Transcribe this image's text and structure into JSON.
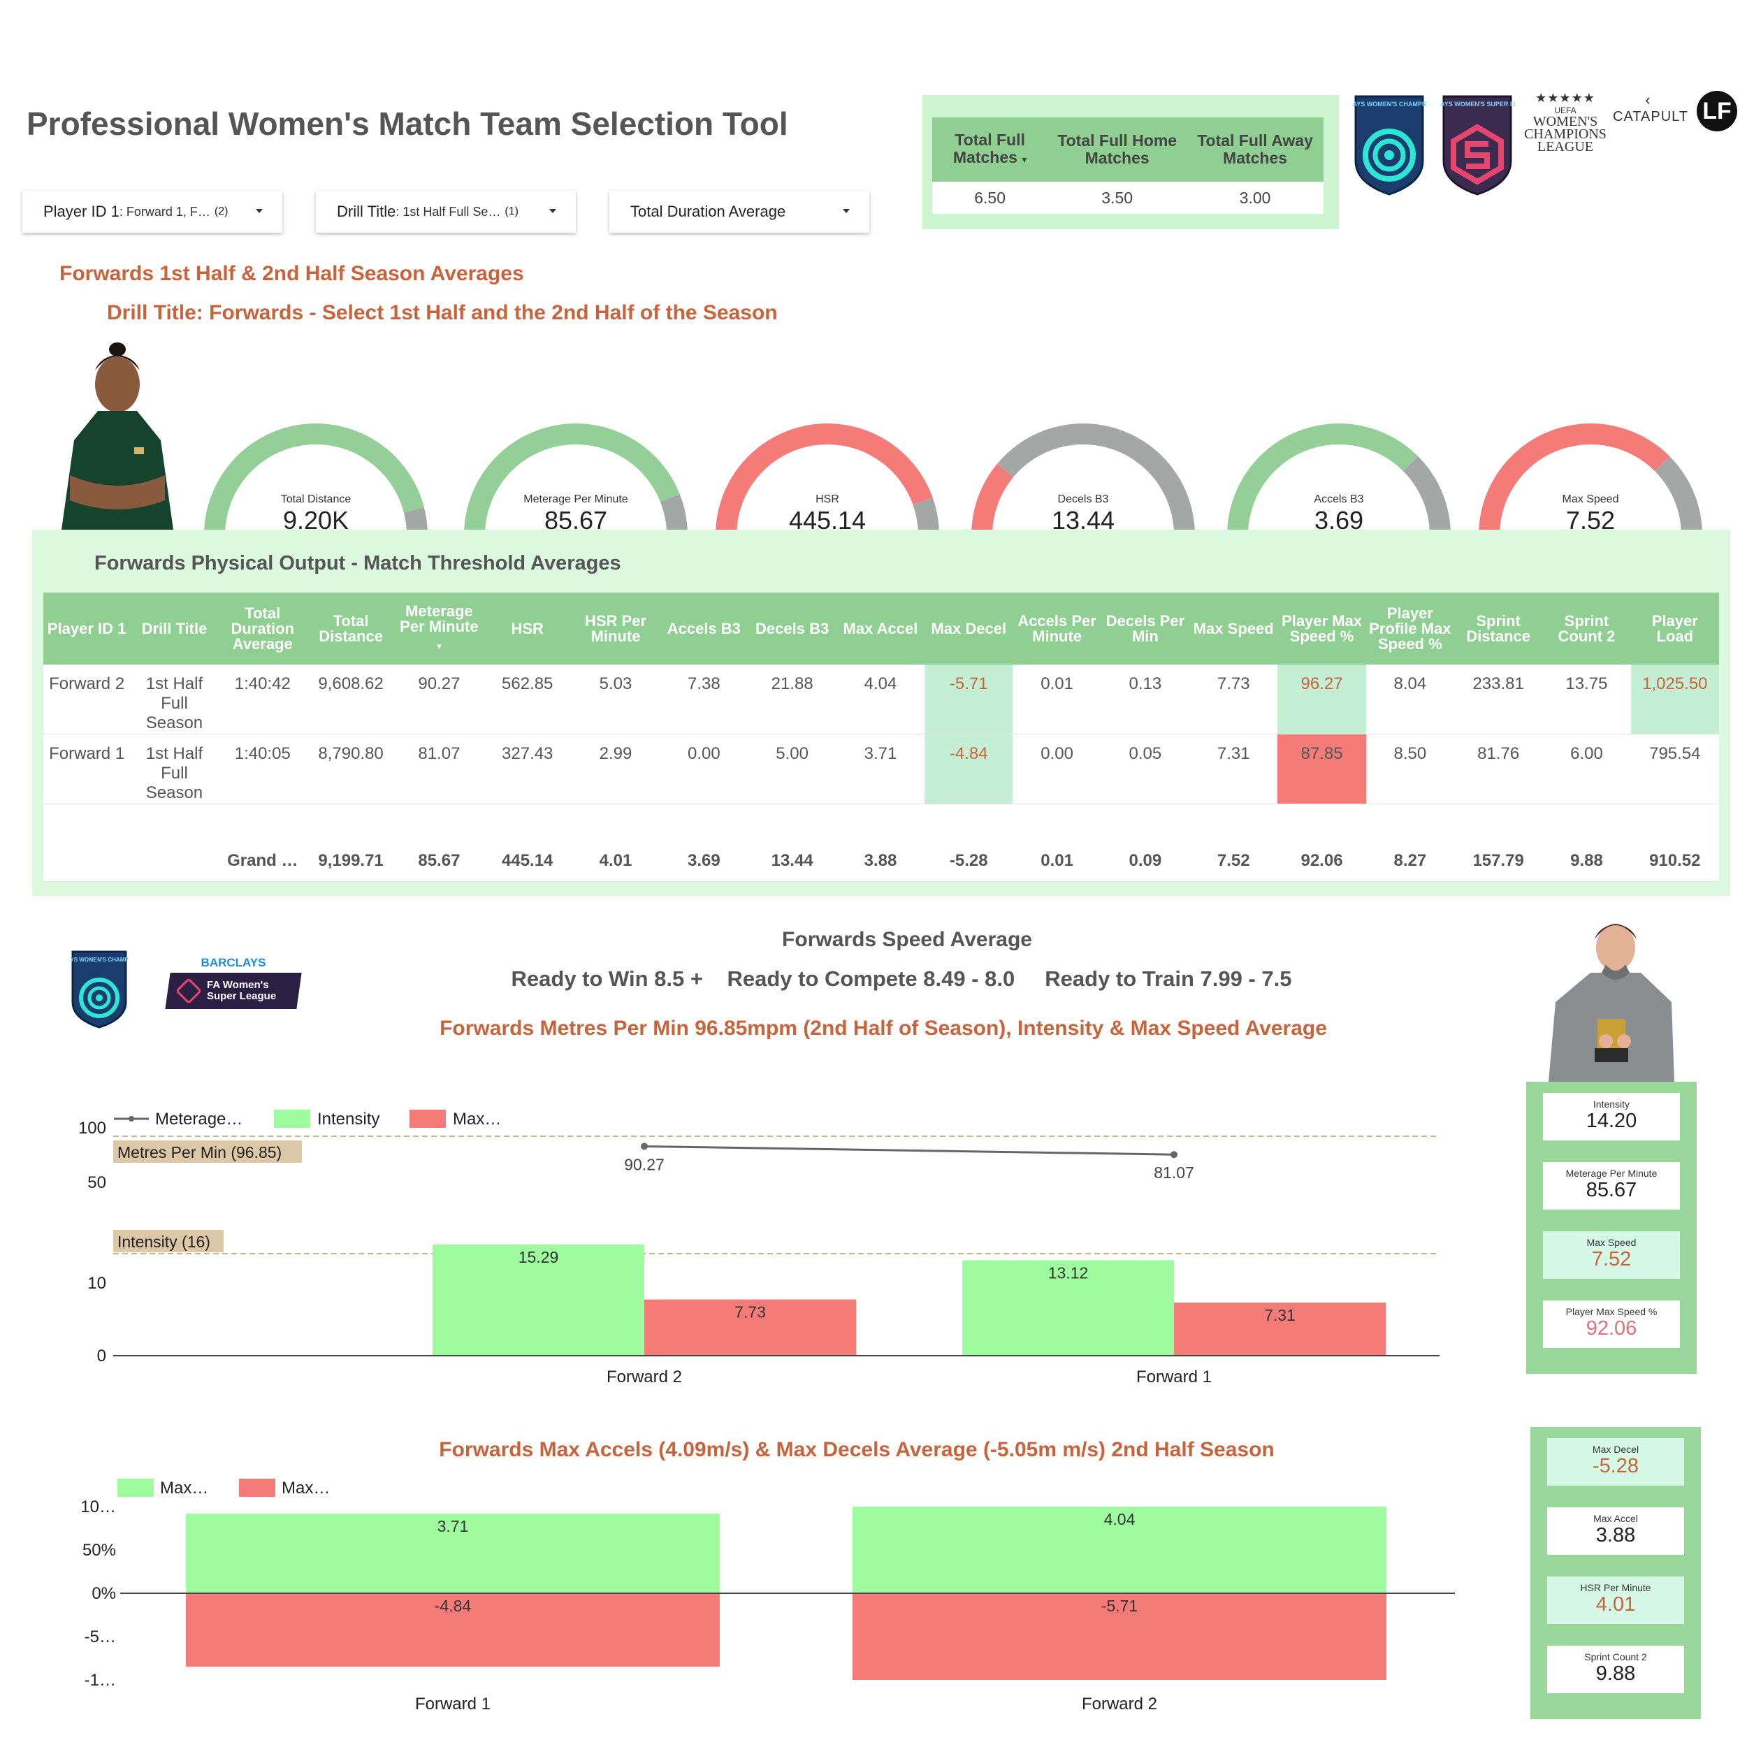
{
  "header": {
    "title": "Professional Women's Match Team Selection Tool",
    "filters": [
      {
        "label": "Player ID 1",
        "value": ": Forward 1, F…",
        "count": "(2)"
      },
      {
        "label": "Drill Title",
        "value": ": 1st Half Full Se…",
        "count": "(1)"
      },
      {
        "label": "Total Duration Average",
        "value": "",
        "count": ""
      }
    ]
  },
  "summary_table": {
    "headers": [
      "Total Full Matches",
      "Total Full Home Matches",
      "Total Full Away Matches"
    ],
    "values": [
      "6.50",
      "3.50",
      "3.00"
    ]
  },
  "logos": {
    "wc": "BARCLAYS WOMEN'S CHAMPIONSHIP",
    "wsl": "BARCLAYS WOMEN'S SUPER LEAGUE",
    "ucl": "WOMEN'S CHAMPIONS LEAGUE",
    "uefa": "UEFA",
    "catapult": "CATAPULT",
    "lf": "LF",
    "barclays": "BARCLAYS",
    "fa_wsl": "FA Women's Super League"
  },
  "section": {
    "heading": "Forwards 1st Half & 2nd Half Season Averages",
    "subheading": "Drill Title: Forwards - Select 1st Half and the 2nd Half of the Season"
  },
  "gauges": [
    {
      "label": "Total Distance",
      "value": "9.20K",
      "fill": 0.92,
      "color": "#93cf97"
    },
    {
      "label": "Meterage Per Minute",
      "value": "85.67",
      "fill": 0.88,
      "color": "#93cf97"
    },
    {
      "label": "HSR",
      "value": "445.14",
      "fill": 0.89,
      "color": "#f47b78"
    },
    {
      "label": "Decels B3",
      "value": "13.44",
      "fill": 0.22,
      "color": "#f47b78"
    },
    {
      "label": "Accels B3",
      "value": "3.69",
      "fill": 0.75,
      "color": "#93cf97"
    },
    {
      "label": "Max Speed",
      "value": "7.52",
      "fill": 0.75,
      "color": "#f47b78"
    }
  ],
  "output_table": {
    "title": "Forwards Physical Output - Match Threshold Averages",
    "headers": [
      "Player ID 1",
      "Drill Title",
      "Total Duration Average",
      "Total Distance",
      "Meterage Per Minute",
      "HSR",
      "HSR Per Minute",
      "Accels B3",
      "Decels B3",
      "Max Accel",
      "Max Decel",
      "Accels Per Minute",
      "Decels Per Min",
      "Max Speed",
      "Player Max Speed %",
      "Player Profile Max Speed %",
      "Sprint Distance",
      "Sprint Count 2",
      "Player Load"
    ],
    "rows": [
      [
        "Forward 2",
        "1st Half Full Season",
        "1:40:42",
        "9,608.62",
        "90.27",
        "562.85",
        "5.03",
        "7.38",
        "21.88",
        "4.04",
        "-5.71",
        "0.01",
        "0.13",
        "7.73",
        "96.27",
        "8.04",
        "233.81",
        "13.75",
        "1,025.50"
      ],
      [
        "Forward 1",
        "1st Half Full Season",
        "1:40:05",
        "8,790.80",
        "81.07",
        "327.43",
        "2.99",
        "0.00",
        "5.00",
        "3.71",
        "-4.84",
        "0.00",
        "0.05",
        "7.31",
        "87.85",
        "8.50",
        "81.76",
        "6.00",
        "795.54"
      ]
    ],
    "grand_total": [
      "",
      "",
      "Grand …",
      "9,199.71",
      "85.67",
      "445.14",
      "4.01",
      "3.69",
      "13.44",
      "3.88",
      "-5.28",
      "0.01",
      "0.09",
      "7.52",
      "92.06",
      "8.27",
      "157.79",
      "9.88",
      "910.52"
    ]
  },
  "speed_section": {
    "title": "Forwards Speed Average",
    "bands": "Ready to Win 8.5 +    Ready to Compete 8.49 - 8.0     Ready to Train 7.99 - 7.5",
    "subtitle": "Forwards Metres Per Min 96.85mpm (2nd Half of Season), Intensity & Max Speed Average"
  },
  "chart_data": [
    {
      "type": "bar",
      "categories": [
        "Forward 2",
        "Forward 1"
      ],
      "legend": [
        "Meterage…",
        "Intensity",
        "Max…"
      ],
      "line_series": {
        "name": "Meterage…",
        "values": [
          90.27,
          81.07
        ]
      },
      "series": [
        {
          "name": "Intensity",
          "values": [
            15.29,
            13.12
          ],
          "color": "#9efc9e"
        },
        {
          "name": "Max…",
          "values": [
            7.73,
            7.31
          ],
          "color": "#f47b78"
        }
      ],
      "reference_lines": [
        {
          "label": "Metres Per Min (96.85)",
          "value": 96.85
        },
        {
          "label": "Intensity (16)",
          "value": 16
        }
      ],
      "y_ticks_upper": [
        "100",
        "50"
      ],
      "y_ticks_lower": [
        "10",
        "0"
      ]
    },
    {
      "type": "bar",
      "title": "Forwards Max Accels (4.09m/s) & Max Decels Average (-5.05m m/s) 2nd Half Season",
      "categories": [
        "Forward 1",
        "Forward 2"
      ],
      "legend": [
        "Max…",
        "Max…"
      ],
      "series": [
        {
          "name": "Max…",
          "values": [
            3.71,
            4.04
          ],
          "color": "#9efc9e"
        },
        {
          "name": "Max…",
          "values": [
            -4.84,
            -5.71
          ],
          "color": "#f47b78"
        }
      ],
      "y_ticks": [
        "10…",
        "50%",
        "0%",
        "-5…",
        "-1…"
      ]
    }
  ],
  "kpis_top": [
    {
      "label": "Intensity",
      "value": "14.20",
      "style": "white"
    },
    {
      "label": "Meterage Per Minute",
      "value": "85.67",
      "style": "white"
    },
    {
      "label": "Max Speed",
      "value": "7.52",
      "style": "mint-orange"
    },
    {
      "label": "Player Max Speed %",
      "value": "92.06",
      "style": "white-pink"
    }
  ],
  "kpis_bottom": [
    {
      "label": "Max Decel",
      "value": "-5.28",
      "style": "mint-orange"
    },
    {
      "label": "Max Accel",
      "value": "3.88",
      "style": "white"
    },
    {
      "label": "HSR Per Minute",
      "value": "4.01",
      "style": "mint-orange"
    },
    {
      "label": "Sprint Count 2",
      "value": "9.88",
      "style": "white"
    }
  ]
}
